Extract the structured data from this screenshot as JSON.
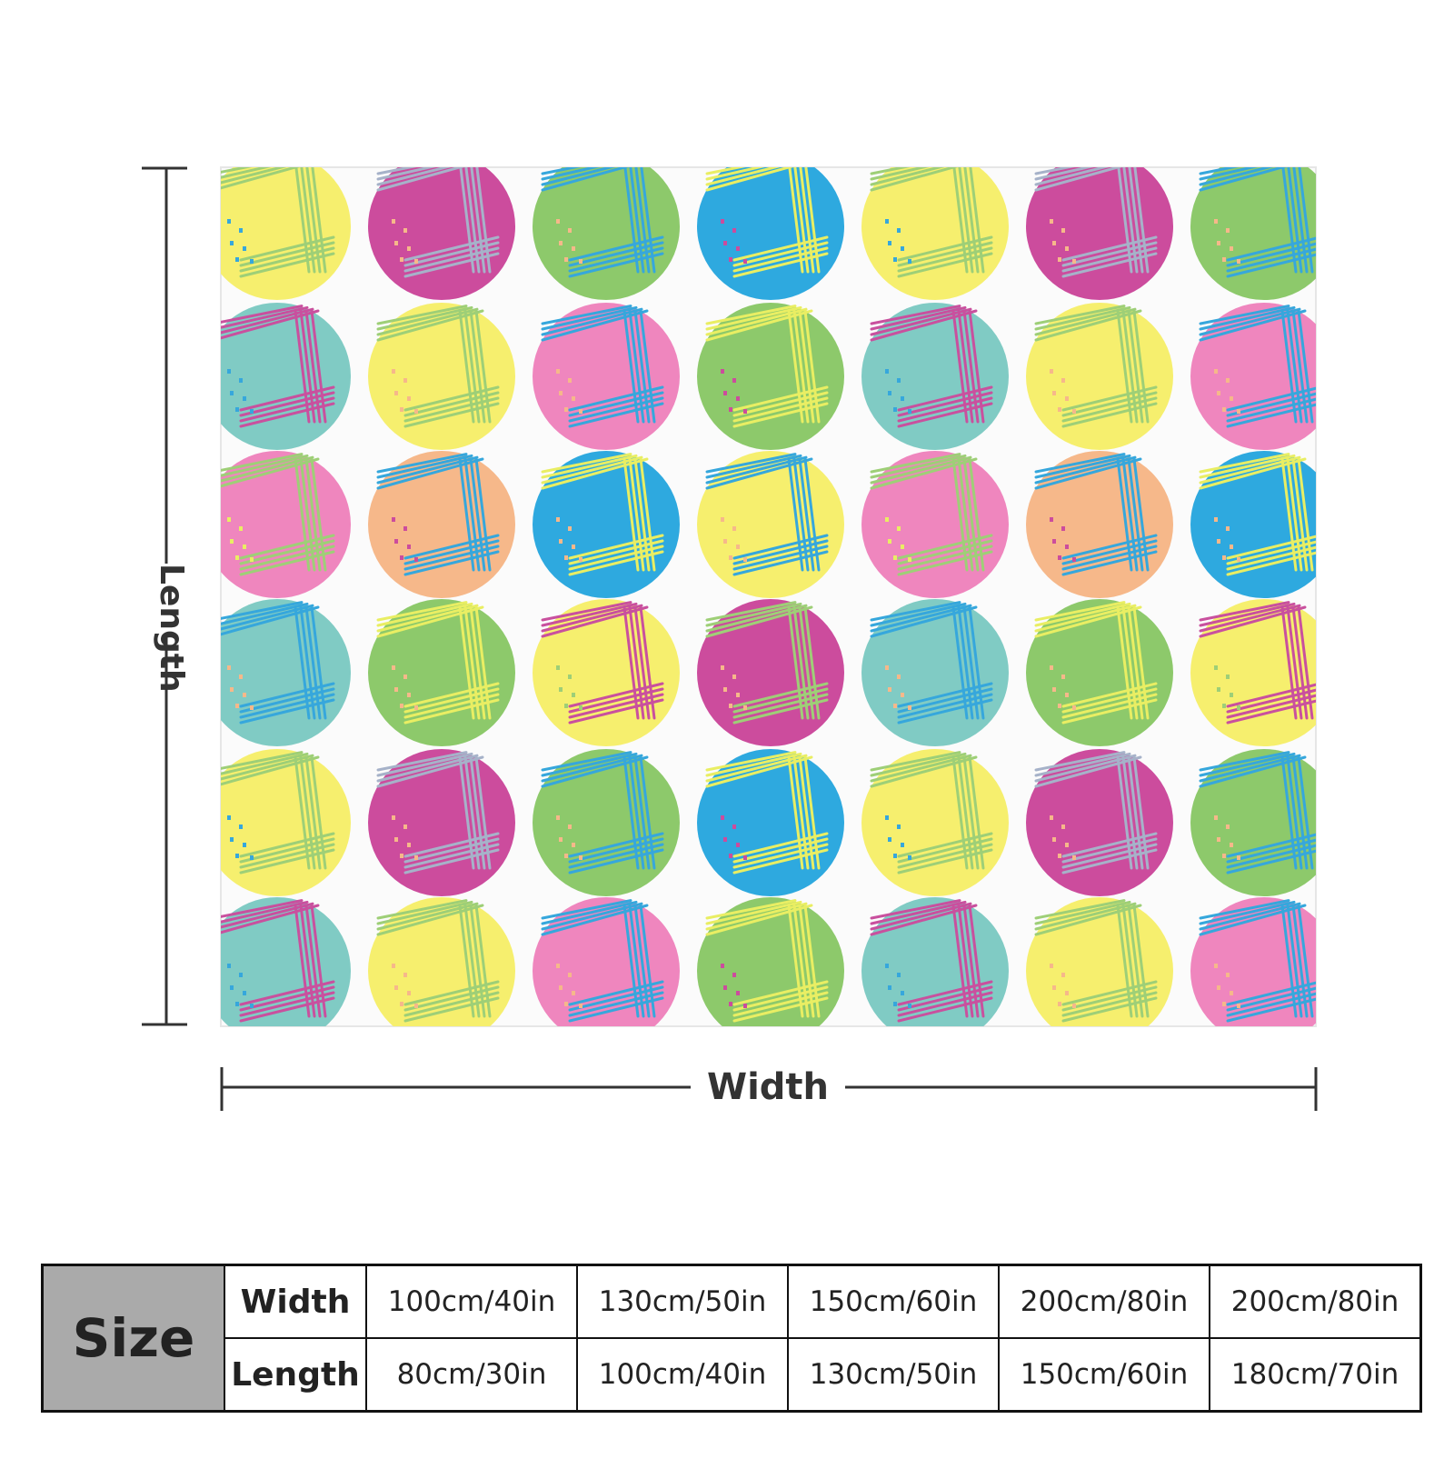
{
  "diagram": {
    "length_label": "Length",
    "width_label": "Width"
  },
  "pattern": {
    "palette": {
      "yellow": "#f6ef6e",
      "magenta": "#cc4c9d",
      "green": "#8dc96b",
      "blue": "#2ea9df",
      "teal": "#80cbc4",
      "pink": "#ef86be",
      "peach": "#f6b88a",
      "lines_yellow": "#e9ee63",
      "lines_grey": "#a6b2c9",
      "lines_green": "#9ecf77",
      "lines_pink": "#c9509e",
      "lines_blue": "#36a7dc"
    },
    "rows": [
      [
        {
          "fill": "yellow",
          "lines": "lines_green",
          "dots": "lines_blue"
        },
        {
          "fill": "magenta",
          "lines": "lines_grey",
          "dots": "peach"
        },
        {
          "fill": "green",
          "lines": "lines_blue",
          "dots": "peach"
        },
        {
          "fill": "blue",
          "lines": "lines_yellow",
          "dots": "magenta"
        },
        {
          "fill": "yellow",
          "lines": "lines_green",
          "dots": "lines_blue"
        },
        {
          "fill": "magenta",
          "lines": "lines_grey",
          "dots": "peach"
        },
        {
          "fill": "green",
          "lines": "lines_blue",
          "dots": "peach"
        }
      ],
      [
        {
          "fill": "teal",
          "lines": "lines_pink",
          "dots": "lines_blue"
        },
        {
          "fill": "yellow",
          "lines": "lines_green",
          "dots": "peach"
        },
        {
          "fill": "pink",
          "lines": "lines_blue",
          "dots": "peach"
        },
        {
          "fill": "green",
          "lines": "lines_yellow",
          "dots": "magenta"
        },
        {
          "fill": "teal",
          "lines": "lines_pink",
          "dots": "lines_blue"
        },
        {
          "fill": "yellow",
          "lines": "lines_green",
          "dots": "peach"
        },
        {
          "fill": "pink",
          "lines": "lines_blue",
          "dots": "peach"
        }
      ],
      [
        {
          "fill": "pink",
          "lines": "lines_green",
          "dots": "lines_yellow"
        },
        {
          "fill": "peach",
          "lines": "lines_blue",
          "dots": "magenta"
        },
        {
          "fill": "blue",
          "lines": "lines_yellow",
          "dots": "peach"
        },
        {
          "fill": "yellow",
          "lines": "lines_blue",
          "dots": "peach"
        },
        {
          "fill": "pink",
          "lines": "lines_green",
          "dots": "lines_yellow"
        },
        {
          "fill": "peach",
          "lines": "lines_blue",
          "dots": "magenta"
        },
        {
          "fill": "blue",
          "lines": "lines_yellow",
          "dots": "peach"
        }
      ],
      [
        {
          "fill": "teal",
          "lines": "lines_blue",
          "dots": "peach"
        },
        {
          "fill": "green",
          "lines": "lines_yellow",
          "dots": "peach"
        },
        {
          "fill": "yellow",
          "lines": "lines_pink",
          "dots": "lines_green"
        },
        {
          "fill": "magenta",
          "lines": "lines_green",
          "dots": "peach"
        },
        {
          "fill": "teal",
          "lines": "lines_blue",
          "dots": "peach"
        },
        {
          "fill": "green",
          "lines": "lines_yellow",
          "dots": "peach"
        },
        {
          "fill": "yellow",
          "lines": "lines_pink",
          "dots": "lines_green"
        }
      ],
      [
        {
          "fill": "yellow",
          "lines": "lines_green",
          "dots": "lines_blue"
        },
        {
          "fill": "magenta",
          "lines": "lines_grey",
          "dots": "peach"
        },
        {
          "fill": "green",
          "lines": "lines_blue",
          "dots": "peach"
        },
        {
          "fill": "blue",
          "lines": "lines_yellow",
          "dots": "magenta"
        },
        {
          "fill": "yellow",
          "lines": "lines_green",
          "dots": "lines_blue"
        },
        {
          "fill": "magenta",
          "lines": "lines_grey",
          "dots": "peach"
        },
        {
          "fill": "green",
          "lines": "lines_blue",
          "dots": "peach"
        }
      ],
      [
        {
          "fill": "teal",
          "lines": "lines_pink",
          "dots": "lines_blue"
        },
        {
          "fill": "yellow",
          "lines": "lines_green",
          "dots": "peach"
        },
        {
          "fill": "pink",
          "lines": "lines_blue",
          "dots": "peach"
        },
        {
          "fill": "green",
          "lines": "lines_yellow",
          "dots": "magenta"
        },
        {
          "fill": "teal",
          "lines": "lines_pink",
          "dots": "lines_blue"
        },
        {
          "fill": "yellow",
          "lines": "lines_green",
          "dots": "peach"
        },
        {
          "fill": "pink",
          "lines": "lines_blue",
          "dots": "peach"
        }
      ]
    ]
  },
  "size_table": {
    "header": "Size",
    "width_label": "Width",
    "length_label": "Length",
    "widths": [
      "100cm/40in",
      "130cm/50in",
      "150cm/60in",
      "200cm/80in",
      "200cm/80in"
    ],
    "lengths": [
      "80cm/30in",
      "100cm/40in",
      "130cm/50in",
      "150cm/60in",
      "180cm/70in"
    ]
  }
}
